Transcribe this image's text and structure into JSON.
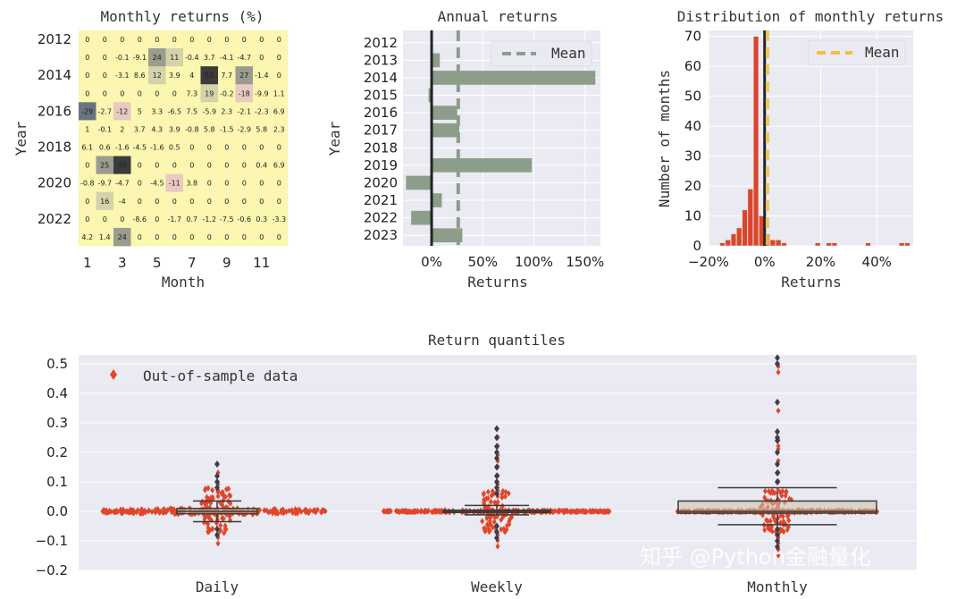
{
  "chart_data": [
    {
      "type": "heatmap",
      "title": "Monthly returns (%)",
      "xlabel": "Month",
      "ylabel": "Year",
      "x_ticks": [
        "1",
        "3",
        "5",
        "7",
        "9",
        "11"
      ],
      "y_ticks": [
        "2012",
        "2014",
        "2016",
        "2018",
        "2020",
        "2022"
      ],
      "columns": [
        "1",
        "2",
        "3",
        "4",
        "5",
        "6",
        "7",
        "8",
        "9",
        "10",
        "11",
        "12"
      ],
      "years": [
        "2012",
        "2013",
        "2014",
        "2015",
        "2016",
        "2017",
        "2018",
        "2019",
        "2020",
        "2021",
        "2022",
        "2023"
      ],
      "cells": [
        [
          "0",
          "0",
          "0",
          "0",
          "0",
          "0",
          "0",
          "0",
          "0",
          "0",
          "0",
          "0"
        ],
        [
          "0",
          "0",
          "-0.1",
          "-9.1",
          "24",
          "11",
          "-0.4",
          "3.7",
          "-4.1",
          "-4.7",
          "0",
          "0"
        ],
        [
          "0",
          "0",
          "-3.1",
          "8.6",
          "12",
          "3.9",
          "4",
          "52",
          "7.7",
          "27",
          "-1.4",
          "0"
        ],
        [
          "0",
          "0",
          "0",
          "0",
          "0",
          "0",
          "7.3",
          "19",
          "-0.2",
          "-18",
          "-9.9",
          "1.1"
        ],
        [
          "-29",
          "-2.7",
          "-12",
          "5",
          "3.3",
          "-6.5",
          "7.5",
          "-5.9",
          "2.3",
          "-2.1",
          "-2.3",
          "6.9"
        ],
        [
          "1",
          "-0.1",
          "2",
          "3.7",
          "4.3",
          "3.9",
          "-0.8",
          "5.8",
          "-1.5",
          "-2.9",
          "5.8",
          "2.3"
        ],
        [
          "6.1",
          "0.6",
          "-1.6",
          "-4.5",
          "-1.6",
          "0.5",
          "0",
          "0",
          "0",
          "0",
          "0",
          "0"
        ],
        [
          "0",
          "25",
          "49",
          "0",
          "0",
          "0",
          "0",
          "0",
          "0",
          "0",
          "0.4",
          "6.9"
        ],
        [
          "-0.8",
          "-9.7",
          "-4.7",
          "0",
          "-4.5",
          "-11",
          "3.8",
          "0",
          "0",
          "0",
          "0",
          "0"
        ],
        [
          "0",
          "16",
          "-4",
          "0",
          "0",
          "0",
          "0",
          "0",
          "0",
          "0",
          "0",
          "0"
        ],
        [
          "0",
          "0",
          "0",
          "-8.6",
          "0",
          "-1.7",
          "0.7",
          "-1.2",
          "-7.5",
          "-0.6",
          "0.3",
          "-3.3"
        ],
        [
          "4.2",
          "1.4",
          "24",
          "0",
          "0",
          "0",
          "0",
          "0",
          "0",
          "0",
          "0",
          "0"
        ]
      ],
      "values": [
        [
          0,
          0,
          0,
          0,
          0,
          0,
          0,
          0,
          0,
          0,
          0,
          0
        ],
        [
          0,
          0,
          -0.1,
          -9.1,
          24,
          11,
          -0.4,
          3.7,
          -4.1,
          -4.7,
          0,
          0
        ],
        [
          0,
          0,
          -3.1,
          8.6,
          12,
          3.9,
          4,
          52,
          7.7,
          27,
          -1.4,
          0
        ],
        [
          0,
          0,
          0,
          0,
          0,
          0,
          7.3,
          19,
          -0.2,
          -18,
          -9.9,
          1.1
        ],
        [
          -29,
          -2.7,
          -12,
          5,
          3.3,
          -6.5,
          7.5,
          -5.9,
          2.3,
          -2.1,
          -2.3,
          6.9
        ],
        [
          1,
          -0.1,
          2,
          3.7,
          4.3,
          3.9,
          -0.8,
          5.8,
          -1.5,
          -2.9,
          5.8,
          2.3
        ],
        [
          6.1,
          0.6,
          -1.6,
          -4.5,
          -1.6,
          0.5,
          0,
          0,
          0,
          0,
          0,
          0
        ],
        [
          0,
          25,
          49,
          0,
          0,
          0,
          0,
          0,
          0,
          0,
          0.4,
          6.9
        ],
        [
          -0.8,
          -9.7,
          -4.7,
          0,
          -4.5,
          -11,
          3.8,
          0,
          0,
          0,
          0,
          0
        ],
        [
          0,
          16,
          -4,
          0,
          0,
          0,
          0,
          0,
          0,
          0,
          0,
          0
        ],
        [
          0,
          0,
          0,
          -8.6,
          0,
          -1.7,
          0.7,
          -1.2,
          -7.5,
          -0.6,
          0.3,
          -3.3
        ],
        [
          4.2,
          1.4,
          24,
          0,
          0,
          0,
          0,
          0,
          0,
          0,
          0,
          0
        ]
      ]
    },
    {
      "type": "bar",
      "orientation": "horizontal",
      "title": "Annual returns",
      "xlabel": "Returns",
      "ylabel": "Year",
      "categories": [
        "2012",
        "2013",
        "2014",
        "2015",
        "2016",
        "2017",
        "2018",
        "2019",
        "2020",
        "2021",
        "2022",
        "2023"
      ],
      "values": [
        0,
        0.08,
        1.6,
        -0.03,
        0.25,
        0.27,
        0,
        0.98,
        -0.25,
        0.1,
        -0.2,
        0.3
      ],
      "mean": 0.26,
      "xlim": [
        -0.28,
        1.65
      ],
      "x_ticks": [
        0,
        0.5,
        1.0,
        1.5
      ],
      "x_tick_labels": [
        "0%",
        "50%",
        "100%",
        "150%"
      ],
      "legend": [
        "Mean"
      ],
      "legend_position": "top-right",
      "bar_color": "#8c9d8a",
      "mean_color": "#8c9d8a"
    },
    {
      "type": "bar",
      "title": "Distribution of monthly returns",
      "xlabel": "Returns",
      "ylabel": "Number of months",
      "bin_edges": [
        -0.2,
        -0.18,
        -0.16,
        -0.14,
        -0.12,
        -0.1,
        -0.08,
        -0.06,
        -0.04,
        -0.02,
        0,
        0.02,
        0.04,
        0.06,
        0.08,
        0.1,
        0.12,
        0.14,
        0.16,
        0.18,
        0.2,
        0.22,
        0.24,
        0.26,
        0.28,
        0.3,
        0.32,
        0.34,
        0.36,
        0.38,
        0.4,
        0.42,
        0.44,
        0.46,
        0.48,
        0.5,
        0.52
      ],
      "counts": [
        0,
        0,
        1,
        2,
        4,
        6,
        12,
        19,
        70,
        10,
        4,
        2,
        2,
        1,
        0,
        0,
        0,
        0,
        0,
        1,
        0,
        1,
        1,
        0,
        0,
        0,
        0,
        0,
        1,
        0,
        0,
        0,
        0,
        0,
        1,
        1
      ],
      "mean": 0.01,
      "xlim": [
        -0.2,
        0.53
      ],
      "ylim": [
        0,
        72
      ],
      "x_ticks": [
        -0.2,
        0,
        0.2,
        0.4
      ],
      "x_tick_labels": [
        "−20%",
        "0%",
        "20%",
        "40%"
      ],
      "y_ticks": [
        0,
        10,
        20,
        30,
        40,
        50,
        60,
        70
      ],
      "legend": [
        "Mean"
      ],
      "legend_position": "top-right",
      "bar_color": "#d9472b",
      "mean_color": "#f0c040"
    },
    {
      "type": "scatter",
      "title": "Return quantiles",
      "categories": [
        "Daily",
        "Weekly",
        "Monthly"
      ],
      "ylim": [
        -0.2,
        0.53
      ],
      "y_ticks": [
        -0.2,
        -0.1,
        0.0,
        0.1,
        0.2,
        0.3,
        0.4,
        0.5
      ],
      "y_tick_labels": [
        "−0.2",
        "−0.1",
        "0.0",
        "0.1",
        "0.2",
        "0.3",
        "0.4",
        "0.5"
      ],
      "legend": [
        "Out-of-sample data"
      ],
      "legend_position": "top-left",
      "point_color": "#e0462b",
      "box_color": "#c8c3ab",
      "outlier_color": "#3a3f4a",
      "boxes": [
        {
          "q1": -0.008,
          "median": 0.0,
          "q3": 0.01,
          "whisker_low": -0.035,
          "whisker_high": 0.035
        },
        {
          "q1": -0.004,
          "median": 0.0,
          "q3": 0.004,
          "whisker_low": -0.012,
          "whisker_high": 0.02
        },
        {
          "q1": -0.006,
          "median": 0.0,
          "q3": 0.035,
          "whisker_low": -0.045,
          "whisker_high": 0.08
        }
      ],
      "outliers": [
        [
          0.16,
          0.12,
          0.1,
          0.08,
          -0.06,
          -0.08
        ],
        [
          0.28,
          0.25,
          0.22,
          0.2,
          0.18,
          0.15,
          0.12,
          0.1,
          0.08,
          0.06,
          -0.05,
          -0.07,
          -0.09
        ],
        [
          0.52,
          0.5,
          0.37,
          0.27,
          0.25,
          0.24,
          0.2,
          0.16,
          0.13,
          0.1,
          -0.06,
          -0.08,
          -0.1,
          -0.12
        ]
      ]
    }
  ],
  "watermark": "知乎 @Python金融量化"
}
